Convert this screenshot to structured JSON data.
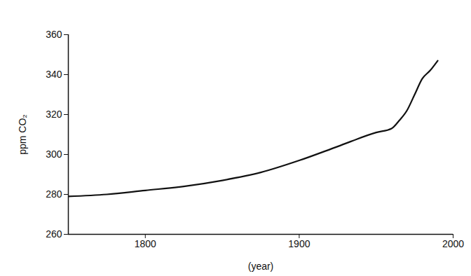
{
  "chart_data": {
    "type": "line",
    "x_label": "(year)",
    "y_label": "ppm CO₂",
    "x": [
      1750,
      1775,
      1800,
      1825,
      1850,
      1875,
      1900,
      1925,
      1950,
      1960,
      1965,
      1970,
      1975,
      1980,
      1985,
      1990
    ],
    "series": [
      {
        "name": "CO₂",
        "color": "#111111",
        "values": [
          279,
          280,
          282,
          284,
          287,
          291,
          297,
          304,
          311,
          313,
          317,
          322,
          330,
          338,
          342,
          347
        ]
      }
    ],
    "xlim": [
      1750,
      2000
    ],
    "xticks": [
      1800,
      1900,
      2000
    ],
    "ylim": [
      260,
      360
    ],
    "yticks": [
      260,
      280,
      300,
      320,
      340,
      360
    ],
    "grid": false
  }
}
